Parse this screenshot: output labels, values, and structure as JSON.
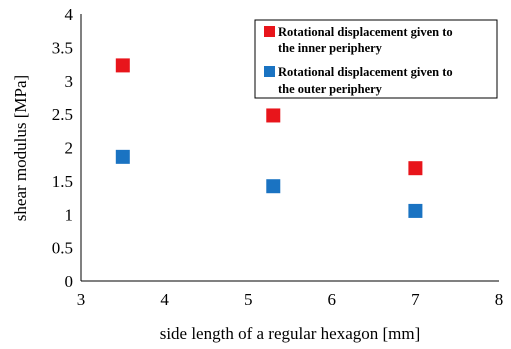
{
  "chart_data": {
    "type": "scatter",
    "title": "",
    "xlabel": "side length of  a regular hexagon [mm]",
    "ylabel": "shear modulus [MPa]",
    "xlim": [
      3,
      8
    ],
    "ylim": [
      0,
      4
    ],
    "x_ticks": [
      "3",
      "4",
      "5",
      "6",
      "7",
      "8"
    ],
    "y_ticks": [
      "0",
      "0.5",
      "1",
      "1.5",
      "2",
      "2.5",
      "3",
      "3.5",
      "4"
    ],
    "grid": false,
    "legend_position": "top-right",
    "series": [
      {
        "name": "Rotational displacement given to the inner periphery",
        "legend_lines": [
          "Rotational displacement given to",
          "the inner periphery"
        ],
        "color": "#e8151b",
        "marker": "square",
        "x": [
          3.5,
          5.3,
          7.0
        ],
        "y": [
          3.23,
          2.48,
          1.69
        ]
      },
      {
        "name": "Rotational displacement given to the outer periphery",
        "legend_lines": [
          "Rotational displacement given to",
          "the outer periphery"
        ],
        "color": "#1a73c2",
        "marker": "square",
        "x": [
          3.5,
          5.3,
          7.0
        ],
        "y": [
          1.86,
          1.42,
          1.05
        ]
      }
    ]
  }
}
